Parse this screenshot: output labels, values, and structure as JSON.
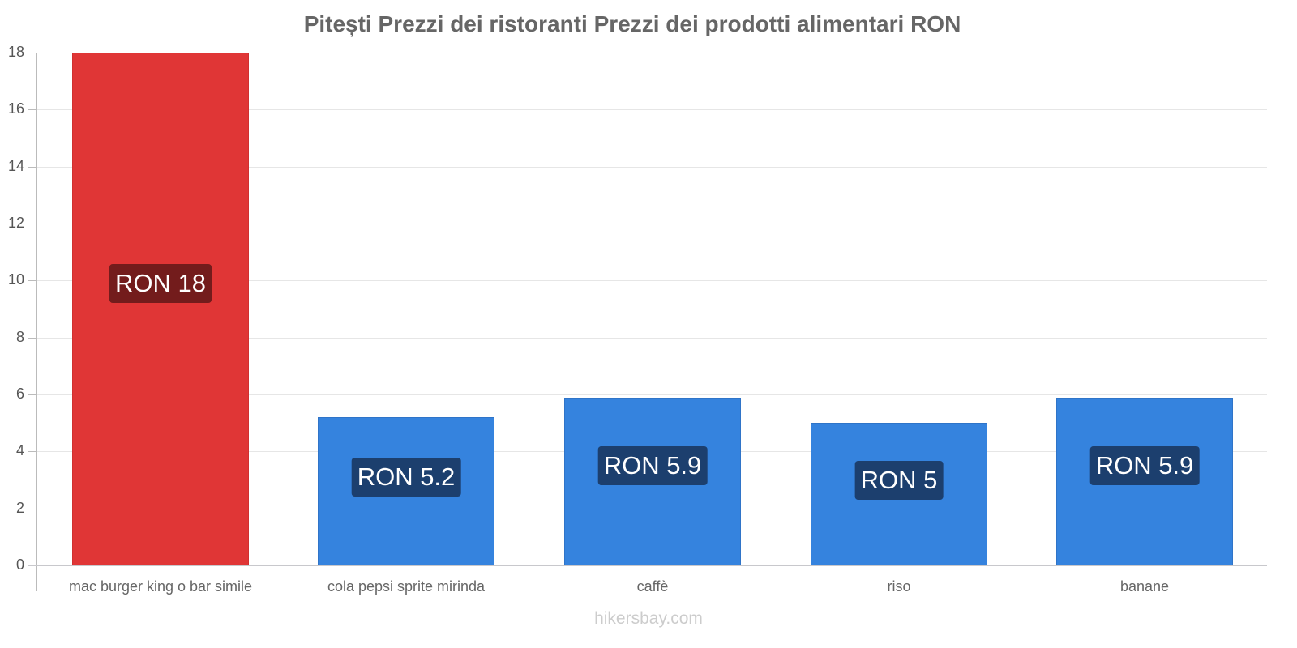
{
  "chart_data": {
    "type": "bar",
    "title": "Pitești Prezzi dei ristoranti Prezzi dei prodotti alimentari RON",
    "categories": [
      "mac burger king o bar simile",
      "cola pepsi sprite mirinda",
      "caffè",
      "riso",
      "banane"
    ],
    "values": [
      18,
      5.2,
      5.9,
      5,
      5.9
    ],
    "value_labels": [
      "RON 18",
      "RON 5.2",
      "RON 5.9",
      "RON 5",
      "RON 5.9"
    ],
    "bar_colors": [
      "#e03636",
      "#3583de",
      "#3583de",
      "#3583de",
      "#3583de"
    ],
    "label_bg_colors": [
      "#731c1c",
      "#1c3f6e",
      "#1c3f6e",
      "#1c3f6e",
      "#1c3f6e"
    ],
    "xlabel": "",
    "ylabel": "",
    "ylim": [
      0,
      18
    ],
    "yticks": [
      0,
      2,
      4,
      6,
      8,
      10,
      12,
      14,
      16,
      18
    ],
    "grid": true,
    "legend": "none",
    "currency": "RON"
  },
  "watermark": "hikersbay.com"
}
